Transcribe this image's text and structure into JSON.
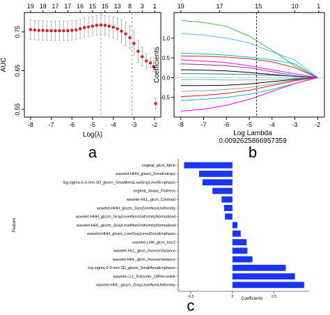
{
  "chart_data": [
    {
      "type": "scatter",
      "panel_label": "a",
      "xlabel": "Log(λ)",
      "ylabel": "AUC",
      "xlim": [
        -8.3,
        -1.7
      ],
      "ylim": [
        0.53,
        0.8
      ],
      "x_ticks": [
        "-8",
        "-7",
        "-6",
        "-5",
        "-4",
        "-3",
        "-2"
      ],
      "y_ticks": [
        "0.55",
        "0.65",
        "0.75"
      ],
      "top_ticks": [
        "19",
        "18",
        "17",
        "17",
        "16",
        "15",
        "15",
        "13",
        "8",
        "3",
        "1"
      ],
      "vlines": [
        -4.6,
        -3.1
      ],
      "x": [
        -8.0,
        -7.8,
        -7.6,
        -7.4,
        -7.2,
        -7.0,
        -6.8,
        -6.6,
        -6.4,
        -6.2,
        -6.0,
        -5.8,
        -5.6,
        -5.4,
        -5.2,
        -5.0,
        -4.8,
        -4.6,
        -4.4,
        -4.2,
        -4.0,
        -3.8,
        -3.6,
        -3.4,
        -3.2,
        -3.0,
        -2.8,
        -2.6,
        -2.4,
        -2.2,
        -2.05,
        -1.95
      ],
      "y": [
        0.756,
        0.755,
        0.754,
        0.754,
        0.753,
        0.753,
        0.753,
        0.753,
        0.753,
        0.753,
        0.754,
        0.755,
        0.758,
        0.761,
        0.763,
        0.765,
        0.767,
        0.768,
        0.767,
        0.765,
        0.762,
        0.758,
        0.752,
        0.745,
        0.735,
        0.72,
        0.7,
        0.686,
        0.675,
        0.67,
        0.66,
        0.565
      ],
      "err": [
        0.025,
        0.025,
        0.025,
        0.025,
        0.025,
        0.025,
        0.025,
        0.025,
        0.025,
        0.025,
        0.025,
        0.025,
        0.025,
        0.025,
        0.025,
        0.025,
        0.025,
        0.025,
        0.025,
        0.026,
        0.027,
        0.028,
        0.029,
        0.03,
        0.03,
        0.03,
        0.028,
        0.024,
        0.018,
        0.013,
        0.012,
        0.015
      ],
      "point_color": "#e31a1c"
    },
    {
      "type": "line",
      "panel_label": "b",
      "xlabel": "Log Lambda",
      "ylabel": "Coefficients",
      "annotation": "0.0092625866957359",
      "xlim": [
        -8.3,
        -1.7
      ],
      "ylim": [
        -1.0,
        1.65
      ],
      "x_ticks": [
        "-8",
        "-7",
        "-6",
        "-5",
        "-4",
        "-3",
        "-2"
      ],
      "y_ticks": [
        "-0.5",
        "0.0",
        "0.5",
        "1.0"
      ],
      "top_ticks": [
        "19",
        "17",
        "15",
        "10",
        "1"
      ],
      "vline": -4.68,
      "x": [
        -8,
        -7,
        -6,
        -5,
        -4,
        -3,
        -2
      ],
      "series": [
        {
          "color": "#4daf4a",
          "values": [
            1.45,
            1.4,
            1.3,
            1.05,
            0.7,
            0.3,
            0.0
          ]
        },
        {
          "color": "#56b4e9",
          "values": [
            1.12,
            1.08,
            1.0,
            0.88,
            0.65,
            0.45,
            0.0
          ]
        },
        {
          "color": "#00bcd4",
          "values": [
            0.62,
            0.6,
            0.57,
            0.52,
            0.45,
            0.35,
            0.0
          ]
        },
        {
          "color": "#e31a1c",
          "values": [
            0.55,
            0.54,
            0.52,
            0.48,
            0.4,
            0.25,
            0.0
          ]
        },
        {
          "color": "#ff00ff",
          "values": [
            0.45,
            0.42,
            0.38,
            0.3,
            0.2,
            0.1,
            0.0
          ]
        },
        {
          "color": "#7b3294",
          "values": [
            0.35,
            0.33,
            0.3,
            0.25,
            0.15,
            0.05,
            0.0
          ]
        },
        {
          "color": "#000000",
          "values": [
            0.2,
            0.19,
            0.17,
            0.13,
            0.08,
            0.03,
            0.0
          ]
        },
        {
          "color": "#1f78b4",
          "values": [
            0.1,
            0.1,
            0.09,
            0.08,
            0.06,
            0.03,
            0.0
          ]
        },
        {
          "color": "#66c2a5",
          "values": [
            -0.05,
            -0.05,
            -0.06,
            -0.06,
            -0.05,
            -0.02,
            0.0
          ]
        },
        {
          "color": "#000000",
          "values": [
            -0.2,
            -0.2,
            -0.19,
            -0.16,
            -0.1,
            -0.04,
            0.0
          ]
        },
        {
          "color": "#999999",
          "values": [
            -0.35,
            -0.33,
            -0.3,
            -0.25,
            -0.16,
            -0.06,
            0.0
          ]
        },
        {
          "color": "#e31a1c",
          "values": [
            -0.48,
            -0.45,
            -0.4,
            -0.32,
            -0.2,
            -0.08,
            0.0
          ]
        },
        {
          "color": "#00bcd4",
          "values": [
            -0.58,
            -0.55,
            -0.5,
            -0.42,
            -0.3,
            -0.15,
            0.0
          ]
        },
        {
          "color": "#ff00ff",
          "values": [
            -0.85,
            -0.8,
            -0.7,
            -0.55,
            -0.35,
            -0.15,
            0.0
          ]
        }
      ]
    },
    {
      "type": "bar",
      "panel_label": "c",
      "xlabel": "Coefficients",
      "ylabel": "Feature",
      "xlim": [
        -0.65,
        0.92
      ],
      "x_ticks": [
        "-0.5",
        "0",
        "0.5"
      ],
      "bar_color": "#1a35f5",
      "categories": [
        "original_glcm_Idmn",
        "wavelet-HHH_glszm_ZoneEntropy",
        "log-sigma-5-0-mm-3D_glszm_SmallAreaLowGrayLevelEmphasis",
        "original_shape_Flatness",
        "wavelet-HLL_glcm_Contrast",
        "wavelet-HHH_glszm_SizeZoneNonUniformity",
        "wavelet-HHH_glszm_GrayLevelNonUniformityNormalized",
        "wavelet-HHL_glszm_GrayLevelNonUniformityNormalized",
        "wavelet-HHH_glszm_LowGrayLevelZoneEmphasis",
        "wavelet-LHH_glcm_Imc2",
        "wavelet-HLL_glcm_InverseVariance",
        "wavelet-HHL_glcm_InverseVariance",
        "log-sigma-2-0-mm-3D_glszm_SmallAreaEmphasis",
        "wavelet-LLL_firstorder_10Percentile",
        "wavelet-HHL_glszm_GrayLevelNonUniformity"
      ],
      "values": [
        -0.58,
        -0.4,
        -0.36,
        -0.24,
        -0.13,
        -0.1,
        -0.09,
        0.06,
        0.1,
        0.17,
        0.18,
        0.24,
        0.64,
        0.75,
        0.86
      ]
    }
  ]
}
